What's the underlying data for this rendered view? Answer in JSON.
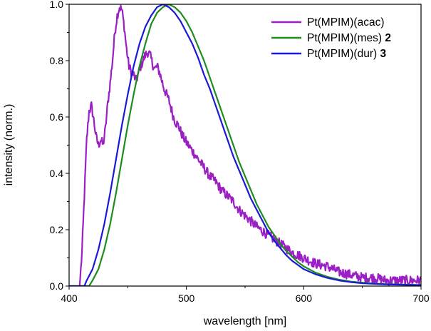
{
  "chart_data": {
    "type": "line",
    "title": "",
    "xlabel": "wavelength [nm]",
    "ylabel": "intensity (norm.)",
    "xlim": [
      400,
      700
    ],
    "ylim": [
      0.0,
      1.0
    ],
    "xticks": [
      400,
      500,
      600,
      700
    ],
    "yticks": [
      0.0,
      0.2,
      0.4,
      0.6,
      0.8,
      1.0
    ],
    "xtick_labels": [
      "400",
      "500",
      "600",
      "700"
    ],
    "ytick_labels": [
      "0.0",
      "0.2",
      "0.4",
      "0.6",
      "0.8",
      "1.0"
    ],
    "legend_position": "top-right",
    "series": [
      {
        "name": "Pt(MPIM)(acac)",
        "suffix": "",
        "color": "#9b1fc4",
        "noisy": true,
        "points": [
          [
            409,
            0.0
          ],
          [
            411,
            0.12
          ],
          [
            413,
            0.32
          ],
          [
            415,
            0.52
          ],
          [
            417,
            0.62
          ],
          [
            419,
            0.64
          ],
          [
            421,
            0.59
          ],
          [
            423,
            0.53
          ],
          [
            425,
            0.5
          ],
          [
            427,
            0.52
          ],
          [
            429,
            0.5
          ],
          [
            431,
            0.56
          ],
          [
            433,
            0.65
          ],
          [
            435,
            0.72
          ],
          [
            437,
            0.8
          ],
          [
            439,
            0.9
          ],
          [
            441,
            0.96
          ],
          [
            443,
            0.99
          ],
          [
            445,
            0.98
          ],
          [
            447,
            0.92
          ],
          [
            449,
            0.84
          ],
          [
            451,
            0.78
          ],
          [
            453,
            0.76
          ],
          [
            455,
            0.75
          ],
          [
            457,
            0.73
          ],
          [
            459,
            0.75
          ],
          [
            461,
            0.78
          ],
          [
            463,
            0.8
          ],
          [
            465,
            0.82
          ],
          [
            467,
            0.83
          ],
          [
            469,
            0.82
          ],
          [
            471,
            0.79
          ],
          [
            473,
            0.77
          ],
          [
            475,
            0.78
          ],
          [
            477,
            0.76
          ],
          [
            479,
            0.73
          ],
          [
            481,
            0.7
          ],
          [
            483,
            0.68
          ],
          [
            485,
            0.66
          ],
          [
            487,
            0.63
          ],
          [
            489,
            0.6
          ],
          [
            491,
            0.58
          ],
          [
            493,
            0.57
          ],
          [
            495,
            0.55
          ],
          [
            497,
            0.53
          ],
          [
            500,
            0.51
          ],
          [
            505,
            0.48
          ],
          [
            510,
            0.45
          ],
          [
            515,
            0.42
          ],
          [
            520,
            0.39
          ],
          [
            525,
            0.37
          ],
          [
            530,
            0.34
          ],
          [
            535,
            0.32
          ],
          [
            540,
            0.3
          ],
          [
            545,
            0.27
          ],
          [
            550,
            0.25
          ],
          [
            555,
            0.23
          ],
          [
            560,
            0.21
          ],
          [
            570,
            0.18
          ],
          [
            580,
            0.15
          ],
          [
            590,
            0.12
          ],
          [
            600,
            0.1
          ],
          [
            610,
            0.08
          ],
          [
            620,
            0.07
          ],
          [
            630,
            0.05
          ],
          [
            640,
            0.04
          ],
          [
            650,
            0.03
          ],
          [
            660,
            0.03
          ],
          [
            670,
            0.02
          ],
          [
            680,
            0.02
          ],
          [
            690,
            0.02
          ],
          [
            700,
            0.02
          ]
        ]
      },
      {
        "name": "Pt(MPIM)(mes)",
        "suffix": "2",
        "color": "#1f8c1f",
        "noisy": false,
        "points": [
          [
            400,
            0.0
          ],
          [
            417,
            0.0
          ],
          [
            420,
            0.02
          ],
          [
            425,
            0.06
          ],
          [
            430,
            0.13
          ],
          [
            435,
            0.22
          ],
          [
            440,
            0.33
          ],
          [
            445,
            0.45
          ],
          [
            450,
            0.57
          ],
          [
            455,
            0.68
          ],
          [
            460,
            0.78
          ],
          [
            465,
            0.86
          ],
          [
            470,
            0.93
          ],
          [
            475,
            0.97
          ],
          [
            480,
            0.99
          ],
          [
            485,
            1.0
          ],
          [
            490,
            0.99
          ],
          [
            495,
            0.97
          ],
          [
            500,
            0.94
          ],
          [
            505,
            0.9
          ],
          [
            510,
            0.85
          ],
          [
            515,
            0.8
          ],
          [
            520,
            0.74
          ],
          [
            525,
            0.68
          ],
          [
            530,
            0.62
          ],
          [
            535,
            0.56
          ],
          [
            540,
            0.5
          ],
          [
            545,
            0.44
          ],
          [
            550,
            0.39
          ],
          [
            555,
            0.34
          ],
          [
            560,
            0.29
          ],
          [
            565,
            0.25
          ],
          [
            570,
            0.21
          ],
          [
            575,
            0.18
          ],
          [
            580,
            0.15
          ],
          [
            585,
            0.125
          ],
          [
            590,
            0.105
          ],
          [
            595,
            0.085
          ],
          [
            600,
            0.07
          ],
          [
            610,
            0.048
          ],
          [
            620,
            0.033
          ],
          [
            630,
            0.023
          ],
          [
            640,
            0.016
          ],
          [
            650,
            0.012
          ],
          [
            660,
            0.009
          ],
          [
            670,
            0.007
          ],
          [
            680,
            0.006
          ],
          [
            690,
            0.005
          ],
          [
            700,
            0.004
          ]
        ]
      },
      {
        "name": "Pt(MPIM)(dur)",
        "suffix": "3",
        "color": "#1a1ad6",
        "noisy": false,
        "points": [
          [
            400,
            0.0
          ],
          [
            413,
            0.0
          ],
          [
            415,
            0.02
          ],
          [
            420,
            0.06
          ],
          [
            425,
            0.13
          ],
          [
            430,
            0.22
          ],
          [
            435,
            0.33
          ],
          [
            440,
            0.45
          ],
          [
            445,
            0.57
          ],
          [
            450,
            0.68
          ],
          [
            455,
            0.78
          ],
          [
            460,
            0.86
          ],
          [
            465,
            0.92
          ],
          [
            470,
            0.96
          ],
          [
            475,
            0.99
          ],
          [
            480,
            1.0
          ],
          [
            485,
            0.99
          ],
          [
            490,
            0.97
          ],
          [
            495,
            0.94
          ],
          [
            500,
            0.9
          ],
          [
            505,
            0.86
          ],
          [
            510,
            0.81
          ],
          [
            515,
            0.75
          ],
          [
            520,
            0.7
          ],
          [
            525,
            0.64
          ],
          [
            530,
            0.58
          ],
          [
            535,
            0.52
          ],
          [
            540,
            0.46
          ],
          [
            545,
            0.41
          ],
          [
            550,
            0.36
          ],
          [
            555,
            0.31
          ],
          [
            560,
            0.27
          ],
          [
            565,
            0.23
          ],
          [
            570,
            0.19
          ],
          [
            575,
            0.16
          ],
          [
            580,
            0.135
          ],
          [
            585,
            0.11
          ],
          [
            590,
            0.09
          ],
          [
            595,
            0.075
          ],
          [
            600,
            0.06
          ],
          [
            610,
            0.042
          ],
          [
            620,
            0.029
          ],
          [
            630,
            0.02
          ],
          [
            640,
            0.014
          ],
          [
            650,
            0.01
          ],
          [
            660,
            0.008
          ],
          [
            670,
            0.006
          ],
          [
            680,
            0.005
          ],
          [
            690,
            0.004
          ],
          [
            700,
            0.003
          ]
        ]
      }
    ]
  }
}
